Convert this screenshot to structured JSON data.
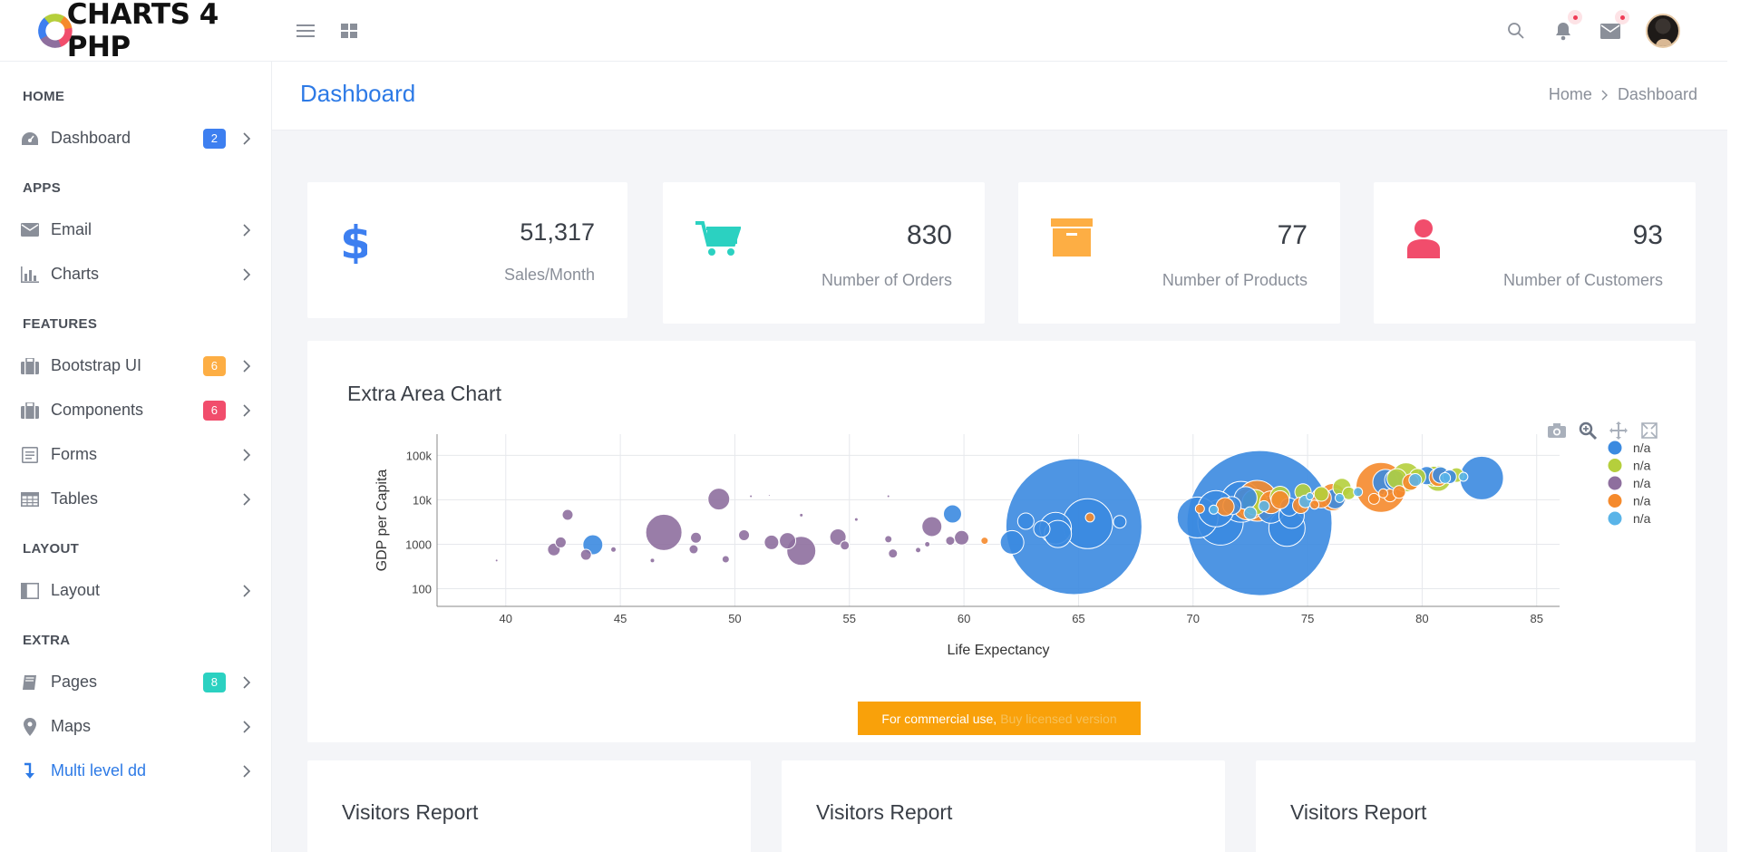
{
  "brand": {
    "name": "CHARTS 4 PHP"
  },
  "topbar": {
    "left_icons": [
      "menu-icon",
      "grid-icon"
    ],
    "right_icons": [
      "search-icon",
      "bell-icon",
      "mail-icon"
    ]
  },
  "sidebar": {
    "sections": [
      {
        "title": "HOME",
        "items": [
          {
            "label": "Dashboard",
            "icon": "dashboard-icon",
            "badge": "2",
            "badge_color": "#3d7ff0"
          }
        ]
      },
      {
        "title": "APPS",
        "items": [
          {
            "label": "Email",
            "icon": "envelope-icon"
          },
          {
            "label": "Charts",
            "icon": "bar-chart-icon"
          }
        ]
      },
      {
        "title": "FEATURES",
        "items": [
          {
            "label": "Bootstrap UI",
            "icon": "briefcase-icon",
            "badge": "6",
            "badge_color": "#fdae44"
          },
          {
            "label": "Components",
            "icon": "briefcase-icon",
            "badge": "6",
            "badge_color": "#f14d6c"
          },
          {
            "label": "Forms",
            "icon": "form-icon"
          },
          {
            "label": "Tables",
            "icon": "table-icon"
          }
        ]
      },
      {
        "title": "LAYOUT",
        "items": [
          {
            "label": "Layout",
            "icon": "columns-icon"
          }
        ]
      },
      {
        "title": "EXTRA",
        "items": [
          {
            "label": "Pages",
            "icon": "book-icon",
            "badge": "8",
            "badge_color": "#2bd1c1"
          },
          {
            "label": "Maps",
            "icon": "map-pin-icon"
          },
          {
            "label": "Multi level dd",
            "icon": "level-down-icon",
            "active": true
          }
        ]
      }
    ]
  },
  "header": {
    "title": "Dashboard",
    "breadcrumb": [
      "Home",
      "Dashboard"
    ]
  },
  "stats": [
    {
      "value": "51,317",
      "label": "Sales/Month",
      "icon": "dollar-icon",
      "color": "#3d7ff0"
    },
    {
      "value": "830",
      "label": "Number of Orders",
      "icon": "cart-icon",
      "color": "#2bd1c1"
    },
    {
      "value": "77",
      "label": "Number of Products",
      "icon": "archive-icon",
      "color": "#fdae44"
    },
    {
      "value": "93",
      "label": "Number of Customers",
      "icon": "user-icon",
      "color": "#f14d6c"
    }
  ],
  "chart_card": {
    "title": "Extra Area Chart",
    "modebar": [
      "camera-icon",
      "zoom-icon",
      "pan-icon",
      "autoscale-icon"
    ],
    "commercial_text": "For commercial use,",
    "commercial_link": "Buy licensed version"
  },
  "chart_data": {
    "type": "scatter",
    "title": "",
    "xlabel": "Life Expectancy",
    "ylabel": "GDP per Capita",
    "xlim": [
      37,
      86
    ],
    "ylim": [
      40,
      300000
    ],
    "y_scale": "log",
    "x_ticks": [
      "40",
      "45",
      "50",
      "55",
      "60",
      "65",
      "70",
      "75",
      "80",
      "85"
    ],
    "y_ticks": [
      "100",
      "1000",
      "10k",
      "100k"
    ],
    "grid": true,
    "legend_position": "right",
    "series": [
      {
        "name": "n/a",
        "color": "#3b8ae0",
        "points": [
          [
            43.8,
            974,
            22
          ],
          [
            59.5,
            4800,
            20
          ],
          [
            62.1,
            1100,
            26
          ],
          [
            64.8,
            2500,
            150
          ],
          [
            64.0,
            2300,
            35
          ],
          [
            63.4,
            2200,
            18
          ],
          [
            65.4,
            2900,
            55
          ],
          [
            64.1,
            1700,
            30
          ],
          [
            62.7,
            3300,
            18
          ],
          [
            66.8,
            3200,
            14
          ],
          [
            70.2,
            4000,
            45
          ],
          [
            71.2,
            3100,
            50
          ],
          [
            71.0,
            6300,
            40
          ],
          [
            72.9,
            3000,
            160
          ],
          [
            72.1,
            9000,
            45
          ],
          [
            73.4,
            6000,
            30
          ],
          [
            74.1,
            2300,
            40
          ],
          [
            74.3,
            4400,
            28
          ],
          [
            72.3,
            11000,
            25
          ],
          [
            71.7,
            7400,
            20
          ],
          [
            74.2,
            6900,
            20
          ],
          [
            76.2,
            10500,
            22
          ],
          [
            78.4,
            25000,
            28
          ],
          [
            78.8,
            28000,
            22
          ],
          [
            80.2,
            35000,
            20
          ],
          [
            82.6,
            31000,
            48
          ],
          [
            80.8,
            36000,
            18
          ],
          [
            81.2,
            33000,
            15
          ]
        ]
      },
      {
        "name": "n/a",
        "color": "#b5cf3c",
        "points": [
          [
            72.7,
            8800,
            28
          ],
          [
            73.8,
            12000,
            22
          ],
          [
            74.8,
            15000,
            18
          ],
          [
            75.6,
            13500,
            16
          ],
          [
            76.5,
            19000,
            20
          ],
          [
            79.3,
            32000,
            32
          ],
          [
            80.7,
            30000,
            28
          ],
          [
            80.5,
            34000,
            22
          ],
          [
            81.5,
            36000,
            16
          ],
          [
            78.9,
            30000,
            22
          ],
          [
            79.8,
            33000,
            18
          ],
          [
            76.8,
            14000,
            14
          ]
        ]
      },
      {
        "name": "n/a",
        "color": "#8e6f9e",
        "points": [
          [
            39.6,
            430,
            3
          ],
          [
            42.1,
            760,
            14
          ],
          [
            42.4,
            1100,
            12
          ],
          [
            42.7,
            4600,
            12
          ],
          [
            43.5,
            580,
            12
          ],
          [
            44.7,
            760,
            6
          ],
          [
            46.4,
            430,
            5
          ],
          [
            46.9,
            1850,
            40
          ],
          [
            48.3,
            1400,
            12
          ],
          [
            48.2,
            770,
            10
          ],
          [
            49.3,
            10400,
            24
          ],
          [
            49.6,
            460,
            8
          ],
          [
            50.4,
            1600,
            12
          ],
          [
            50.7,
            12000,
            3
          ],
          [
            51.6,
            1100,
            16
          ],
          [
            52.3,
            1200,
            18
          ],
          [
            52.9,
            710,
            32
          ],
          [
            52.9,
            4500,
            4
          ],
          [
            54.5,
            1450,
            18
          ],
          [
            54.8,
            940,
            10
          ],
          [
            55.3,
            3600,
            4
          ],
          [
            56.7,
            1300,
            8
          ],
          [
            56.9,
            620,
            10
          ],
          [
            58.0,
            740,
            6
          ],
          [
            58.4,
            1000,
            6
          ],
          [
            58.6,
            2500,
            22
          ],
          [
            59.4,
            1200,
            10
          ],
          [
            59.9,
            1400,
            16
          ],
          [
            56.7,
            12000,
            3
          ],
          [
            51.5,
            12500,
            2
          ]
        ]
      },
      {
        "name": "n/a",
        "color": "#f58a2c",
        "points": [
          [
            60.9,
            1200,
            8
          ],
          [
            65.5,
            4000,
            10
          ],
          [
            70.3,
            6300,
            10
          ],
          [
            71.4,
            7000,
            20
          ],
          [
            72.4,
            8000,
            35
          ],
          [
            72.8,
            9500,
            45
          ],
          [
            73.4,
            8800,
            25
          ],
          [
            73.8,
            10000,
            20
          ],
          [
            74.7,
            7500,
            18
          ],
          [
            75.6,
            11000,
            22
          ],
          [
            76.1,
            11500,
            30
          ],
          [
            78.2,
            19000,
            55
          ],
          [
            78.6,
            12500,
            14
          ],
          [
            79.5,
            25000,
            18
          ],
          [
            79.0,
            15000,
            14
          ],
          [
            80.7,
            32000,
            20
          ],
          [
            77.9,
            10500,
            12
          ],
          [
            75.3,
            7800,
            10
          ],
          [
            78.3,
            14000,
            10
          ]
        ]
      },
      {
        "name": "n/a",
        "color": "#5ab4e8",
        "points": [
          [
            72.5,
            5000,
            14
          ],
          [
            73.1,
            7200,
            12
          ],
          [
            74.9,
            9200,
            14
          ],
          [
            76.4,
            11000,
            10
          ],
          [
            77.2,
            15000,
            10
          ],
          [
            79.7,
            28000,
            14
          ],
          [
            81.0,
            31000,
            12
          ],
          [
            81.8,
            33000,
            10
          ],
          [
            70.9,
            6000,
            10
          ],
          [
            75.1,
            12000,
            8
          ]
        ]
      }
    ]
  },
  "visitors": [
    {
      "title": "Visitors Report"
    },
    {
      "title": "Visitors Report"
    },
    {
      "title": "Visitors Report"
    }
  ]
}
